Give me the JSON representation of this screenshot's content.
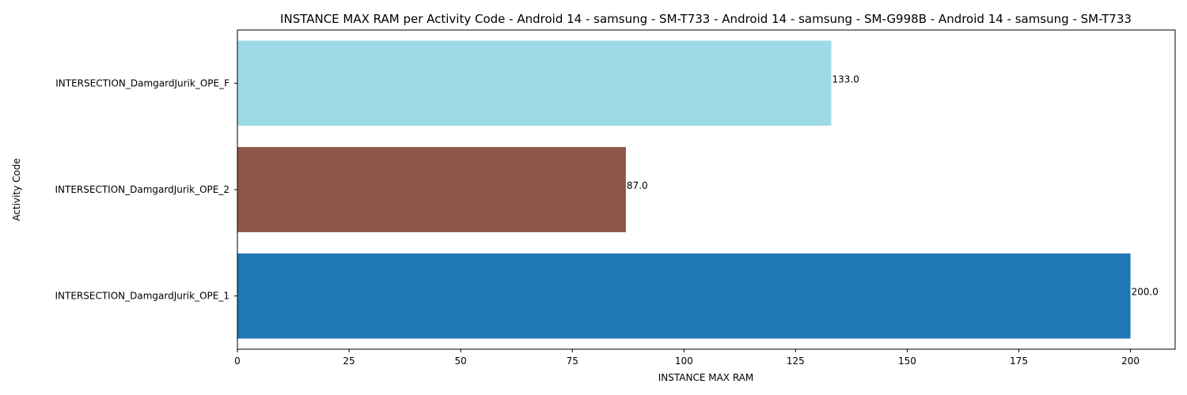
{
  "chart_data": {
    "type": "bar",
    "orientation": "horizontal",
    "title": "INSTANCE MAX RAM per Activity Code - Android 14 - samsung - SM-T733 - Android 14 - samsung - SM-G998B - Android 14 - samsung - SM-T733",
    "xlabel": "INSTANCE MAX RAM",
    "ylabel": "Activity Code",
    "xlim": [
      0,
      210
    ],
    "xticks": [
      0,
      25,
      50,
      75,
      100,
      125,
      150,
      175,
      200
    ],
    "grid": false,
    "categories": [
      "INTERSECTION_DamgardJurik_OPE_1",
      "INTERSECTION_DamgardJurik_OPE_2",
      "INTERSECTION_DamgardJurik_OPE_F"
    ],
    "values": [
      200.0,
      87.0,
      133.0
    ],
    "value_labels": [
      "200.0",
      "87.0",
      "133.0"
    ],
    "colors": [
      "#1f77b4",
      "#8c564b",
      "#9edae5"
    ]
  }
}
